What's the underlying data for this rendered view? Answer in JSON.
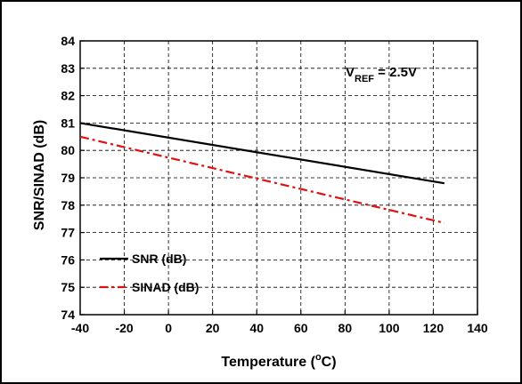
{
  "chart_data": {
    "type": "line",
    "xlabel": "Temperature (",
    "xlabel_sup": "o",
    "xlabel_suffix": "C)",
    "ylabel": "SNR/SINAD (dB)",
    "xlim": [
      -40,
      140
    ],
    "ylim": [
      74,
      84
    ],
    "x_ticks": [
      -40,
      -20,
      0,
      20,
      40,
      60,
      80,
      100,
      120,
      140
    ],
    "y_ticks": [
      74,
      75,
      76,
      77,
      78,
      79,
      80,
      81,
      82,
      83,
      84
    ],
    "grid": true,
    "annotation": {
      "main": "V",
      "sub": "REF",
      "rest": " = 2.5V"
    },
    "legend_placement": "bottom-left",
    "series": [
      {
        "name": "SNR (dB)",
        "color": "#000000",
        "dash": "solid",
        "x": [
          -40,
          125
        ],
        "y": [
          81.0,
          78.8
        ]
      },
      {
        "name": "SINAD (dB)",
        "color": "#e01010",
        "dash": "dash-dot",
        "x": [
          -40,
          125
        ],
        "y": [
          80.5,
          77.35
        ]
      }
    ]
  }
}
